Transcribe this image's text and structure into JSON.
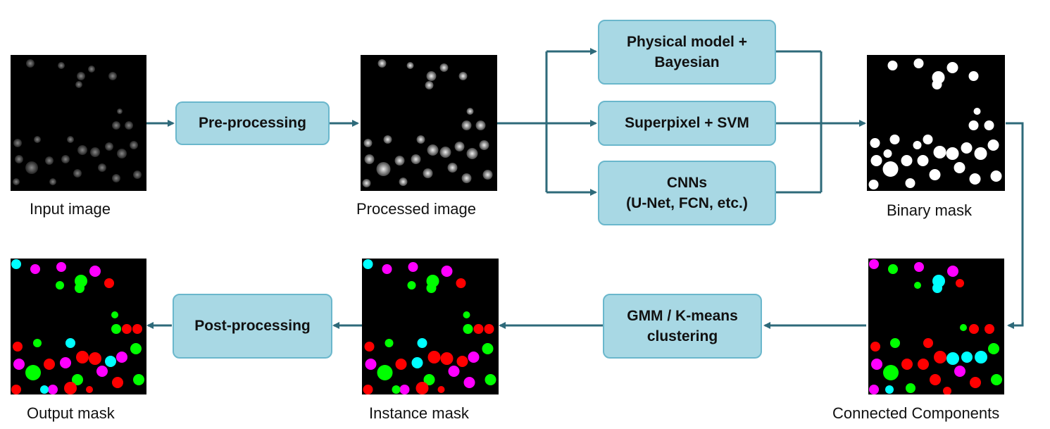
{
  "captions": {
    "input": "Input image",
    "processed": "Processed  image",
    "binary": "Binary mask",
    "connected": "Connected Components",
    "instance": "Instance mask",
    "output": "Output mask"
  },
  "boxes": {
    "preprocessing": "Pre-processing",
    "physical": "Physical model +\nBayesian",
    "superpixel": "Superpixel +  SVM",
    "cnns": "CNNs\n(U-Net, FCN, etc.)",
    "gmm": "GMM / K-means\nclustering",
    "postprocessing": "Post-processing"
  },
  "colors": {
    "arrow": "#2e6a7a",
    "box_fill": "#a8d8e4",
    "box_border": "#6ab7cc",
    "instance_palette": [
      "#ff0000",
      "#00ff00",
      "#ff00ff",
      "#00ffff"
    ]
  }
}
